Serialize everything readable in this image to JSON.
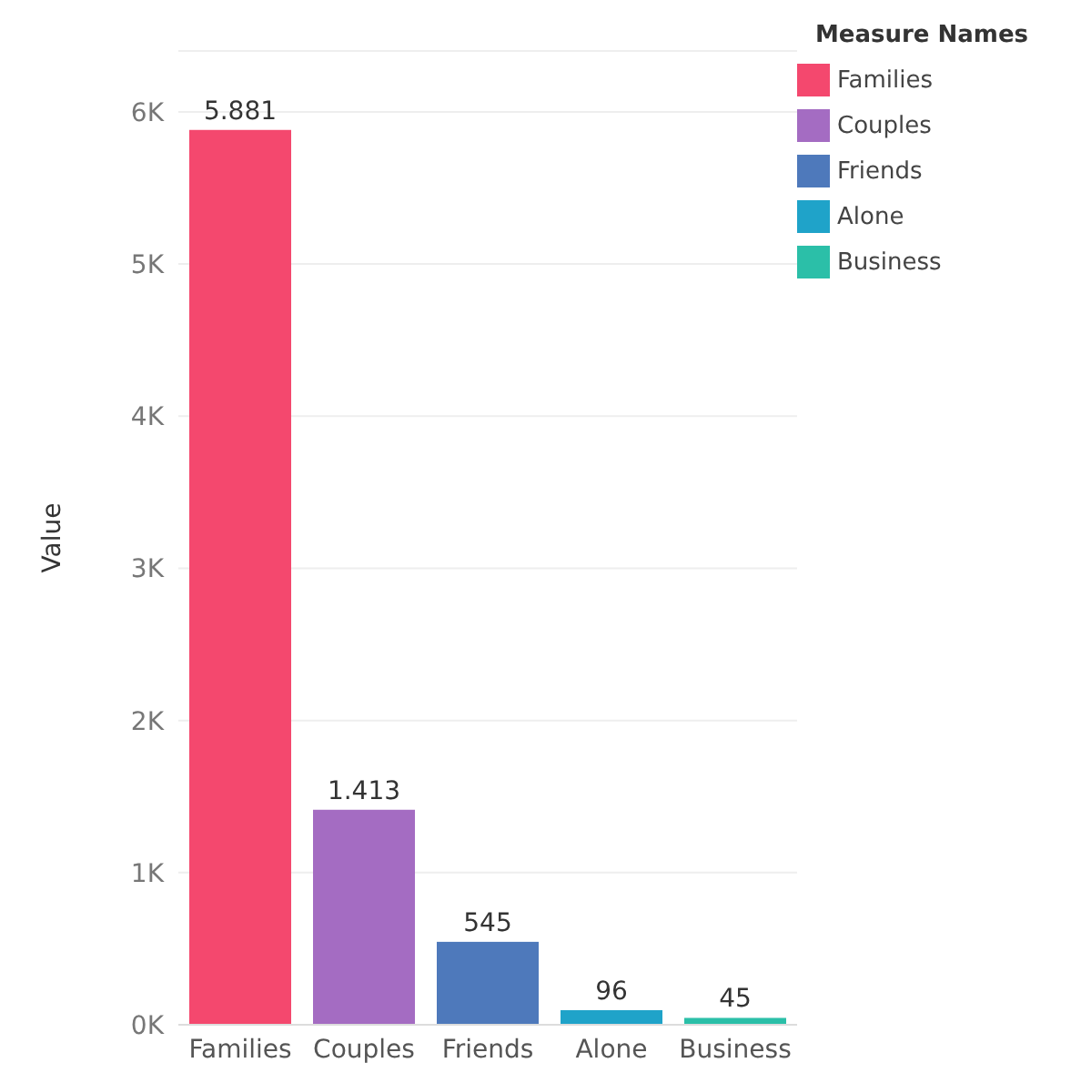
{
  "chart_data": {
    "type": "bar",
    "ylabel": "Value",
    "legend_title": "Measure Names",
    "categories": [
      "Families",
      "Couples",
      "Friends",
      "Alone",
      "Business"
    ],
    "series": [
      {
        "name": "Families",
        "color": "#f4486e",
        "values": [
          5881,
          null,
          null,
          null,
          null
        ],
        "value_labels": [
          "5.881",
          null,
          null,
          null,
          null
        ]
      },
      {
        "name": "Couples",
        "color": "#a46cc2",
        "values": [
          null,
          1413,
          null,
          null,
          null
        ],
        "value_labels": [
          null,
          "1.413",
          null,
          null,
          null
        ]
      },
      {
        "name": "Friends",
        "color": "#4e79bb",
        "values": [
          null,
          null,
          545,
          null,
          null
        ],
        "value_labels": [
          null,
          null,
          "545",
          null,
          null
        ]
      },
      {
        "name": "Alone",
        "color": "#1fa3c9",
        "values": [
          null,
          null,
          null,
          96,
          null
        ],
        "value_labels": [
          null,
          null,
          null,
          "96",
          null
        ]
      },
      {
        "name": "Business",
        "color": "#2bbfa8",
        "values": [
          null,
          null,
          null,
          null,
          45
        ],
        "value_labels": [
          null,
          null,
          null,
          null,
          "45"
        ]
      }
    ],
    "ylim": [
      0,
      6400
    ],
    "yticks": [
      {
        "value": 0,
        "label": "0K"
      },
      {
        "value": 1000,
        "label": "1K"
      },
      {
        "value": 2000,
        "label": "2K"
      },
      {
        "value": 3000,
        "label": "3K"
      },
      {
        "value": 4000,
        "label": "4K"
      },
      {
        "value": 5000,
        "label": "5K"
      },
      {
        "value": 6000,
        "label": "6K"
      }
    ],
    "grid": "y",
    "legend": "top right"
  }
}
